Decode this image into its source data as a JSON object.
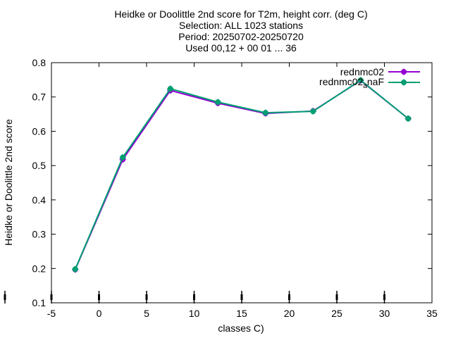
{
  "chart_data": {
    "type": "line",
    "title_lines": [
      "Heidke or Doolittle 2nd score  for T2m, height corr. (deg C)",
      "Selection: ALL   1023 stations",
      "Period: 20250702-20250720",
      "Used 00,12 + 00 01 ... 36"
    ],
    "xlabel": "classes C)",
    "ylabel": "Heidke or Doolittle 2nd score",
    "xlim": [
      -5,
      35
    ],
    "ylim": [
      0.1,
      0.8
    ],
    "xticks": [
      "-5",
      "0",
      "5",
      "10",
      "15",
      "20",
      "25",
      "30",
      "35"
    ],
    "yticks": [
      "0.1",
      "0.2",
      "0.3",
      "0.4",
      "0.5",
      "0.6",
      "0.7",
      "0.8"
    ],
    "grid": false,
    "legend_position": "top-right",
    "series": [
      {
        "name": "rednmc02",
        "color": "#9400d3",
        "x": [
          -2.5,
          2.5,
          7.5,
          12.5,
          17.5,
          22.5,
          27.5,
          32.5
        ],
        "y": [
          0.197,
          0.518,
          0.719,
          0.682,
          0.652,
          0.659,
          0.748,
          0.637
        ]
      },
      {
        "name": "rednmc02_naF",
        "label_main": "rednmc02",
        "label_sub": "a",
        "label_tail": "naF",
        "color": "#009e73",
        "x": [
          -2.5,
          2.5,
          7.5,
          12.5,
          17.5,
          22.5,
          27.5,
          32.5
        ],
        "y": [
          0.198,
          0.524,
          0.724,
          0.685,
          0.654,
          0.658,
          0.749,
          0.637
        ]
      }
    ],
    "bottom_marker_x": [
      -5,
      0,
      5,
      10,
      15,
      20,
      25,
      30
    ],
    "bottom_marker_color": "#000000",
    "marker": "filled-circle-cross"
  }
}
